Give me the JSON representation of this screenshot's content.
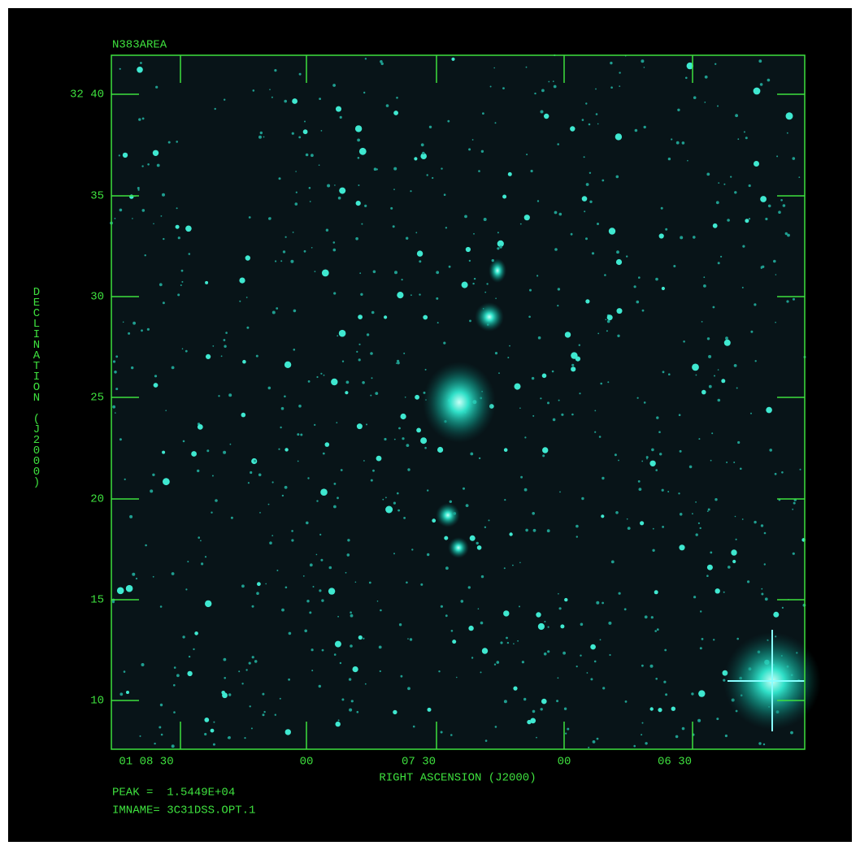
{
  "title": "N383AREA",
  "x_axis": {
    "label": "RIGHT ASCENSION (J2000)",
    "ticks": [
      "01 08 30",
      "00",
      "07 30",
      "00",
      "06 30"
    ]
  },
  "y_axis": {
    "label": "DECLINATION (J2000)",
    "ticks": [
      "32 40",
      "35",
      "30",
      "25",
      "20",
      "15",
      "10"
    ]
  },
  "footer": {
    "peak": "PEAK =  1.5449E+04",
    "imname": "IMNAME= 3C31DSS.OPT.1"
  }
}
